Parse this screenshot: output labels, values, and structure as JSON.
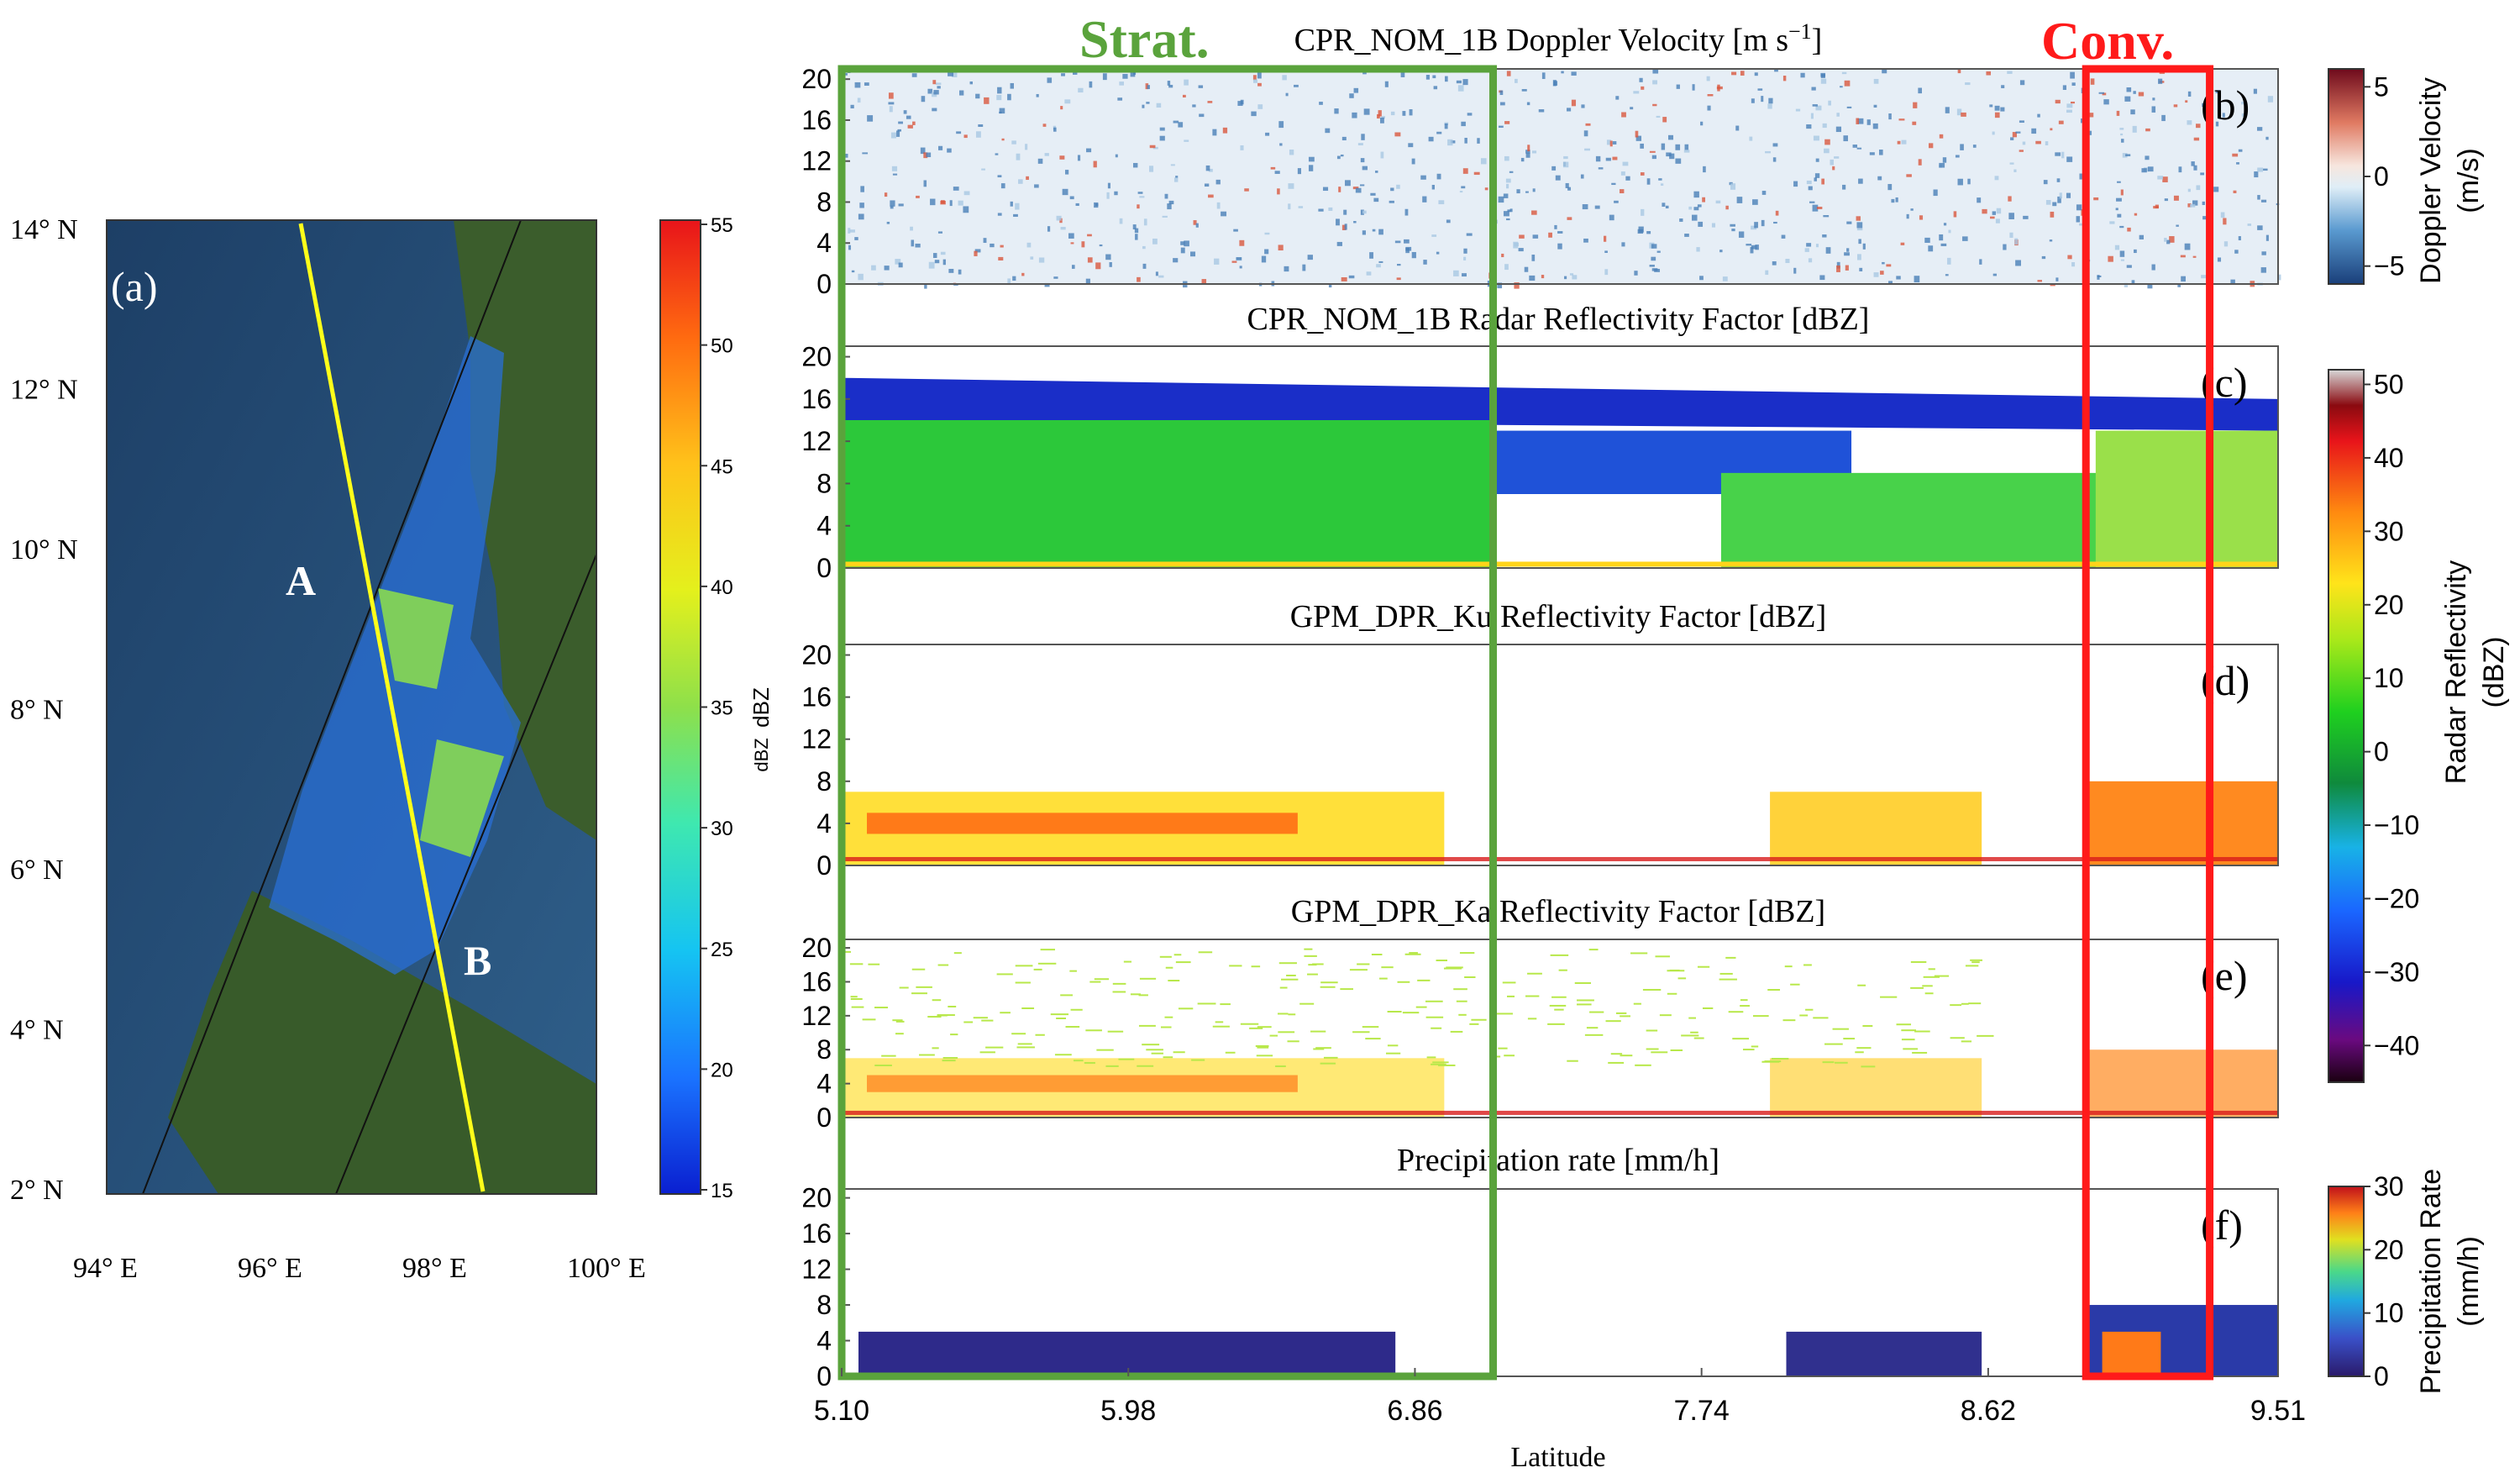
{
  "chart_data": [
    {
      "type": "heatmap",
      "panel": "(a)",
      "title": "",
      "map_ticks_lat": [
        "14° N",
        "12° N",
        "10° N",
        "8° N",
        "6° N",
        "4° N",
        "2° N"
      ],
      "map_ticks_lon": [
        "94° E",
        "96° E",
        "98° E",
        "100° E"
      ],
      "track_labels": [
        "A",
        "B"
      ],
      "colorbar": {
        "label": "dBZ",
        "ticks": [
          "55",
          "50",
          "45",
          "40",
          "35",
          "30",
          "25",
          "20",
          "15"
        ],
        "range": [
          15,
          55
        ]
      }
    },
    {
      "type": "heatmap",
      "panel": "(b)",
      "title": "CPR_NOM_1B Doppler Velocity [m s−1]",
      "title_main": "CPR_NOM_1B Doppler Velocity [m s",
      "title_exp": "−1",
      "title_end": "]",
      "yticks": [
        "20",
        "16",
        "12",
        "8",
        "4",
        "0"
      ],
      "colorbar": {
        "label": "Doppler Velocity (m/s)",
        "label_top": "Doppler Velocity",
        "label_bottom": "(m/s)",
        "ticks": [
          "5",
          "0",
          "−5"
        ],
        "range": [
          -6,
          6
        ]
      }
    },
    {
      "type": "heatmap",
      "panel": "(c)",
      "title": "CPR_NOM_1B Radar Reflectivity Factor [dBZ]",
      "yticks": [
        "20",
        "16",
        "12",
        "8",
        "4",
        "0"
      ],
      "colorbar": {
        "label": "Radar Reflectivity (dBZ)",
        "label_top": "Radar Reflectivity",
        "label_bottom": "(dBZ)",
        "ticks": [
          "50",
          "40",
          "30",
          "20",
          "10",
          "0",
          "−10",
          "−20",
          "−30",
          "−40"
        ],
        "range": [
          -45,
          52
        ]
      }
    },
    {
      "type": "heatmap",
      "panel": "(d)",
      "title": "GPM_DPR_Ku Reflectivity Factor [dBZ]",
      "yticks": [
        "20",
        "16",
        "12",
        "8",
        "4",
        "0"
      ],
      "ylabel": "dBZ"
    },
    {
      "type": "heatmap",
      "panel": "(e)",
      "title": "GPM_DPR_Ka Reflectivity Factor [dBZ]",
      "yticks": [
        "20",
        "16",
        "12",
        "8",
        "4",
        "0"
      ]
    },
    {
      "type": "heatmap",
      "panel": "(f)",
      "title": "Precipitation rate [mm/h]",
      "yticks": [
        "20",
        "16",
        "12",
        "8",
        "4",
        "0"
      ],
      "xticks": [
        "5.10",
        "5.98",
        "6.86",
        "7.74",
        "8.62",
        "9.51"
      ],
      "xlabel": "Latitude",
      "xlim": [
        5.1,
        9.51
      ],
      "ylim": [
        0,
        21
      ],
      "colorbar": {
        "label": "Precipitation Rate (mm/h)",
        "label_top": "Precipitation Rate",
        "label_bottom": "(mm/h)",
        "ticks": [
          "30",
          "20",
          "10",
          "0"
        ],
        "range": [
          0,
          30
        ]
      }
    }
  ],
  "annotations": {
    "strat": {
      "label": "Strat.",
      "color": "#5aa33c",
      "lat_range": [
        5.1,
        7.1
      ]
    },
    "conv": {
      "label": "Conv.",
      "color": "#ff1a1a",
      "lat_range": [
        8.92,
        9.3
      ]
    }
  }
}
